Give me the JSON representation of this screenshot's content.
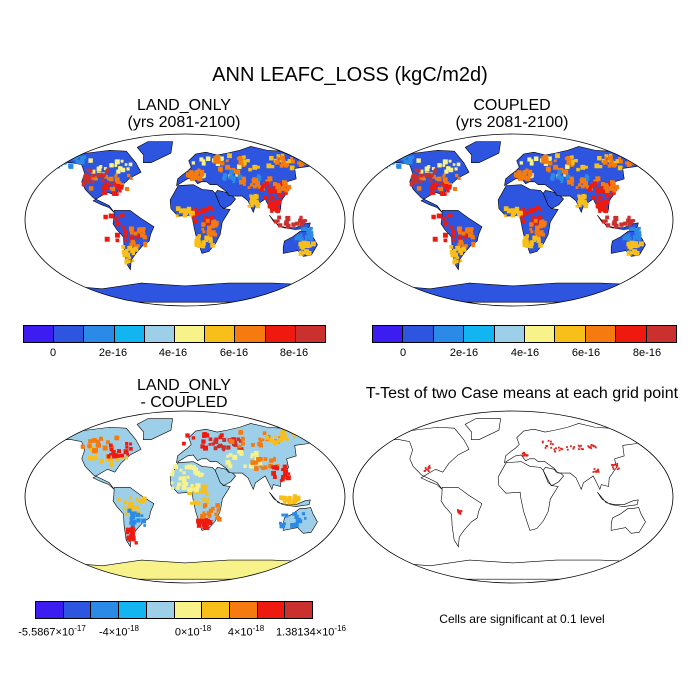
{
  "title": "ANN LEAFC_LOSS (kgC/m2d)",
  "panels": {
    "land_only": {
      "title_line1": "LAND_ONLY",
      "title_line2": "(yrs 2081-2100)"
    },
    "coupled": {
      "title_line1": "COUPLED",
      "title_line2": "(yrs 2081-2100)"
    },
    "diff": {
      "title_line1": "LAND_ONLY",
      "title_line2": "- COUPLED"
    },
    "ttest": {
      "title": "T-Test of two Case means at each grid point",
      "note": "Cells are significant at 0.1 level"
    }
  },
  "colorbar_main": {
    "colors": [
      "#3d1cf2",
      "#2e55e0",
      "#2a8ae6",
      "#12b5f0",
      "#9dd0e8",
      "#f8f28a",
      "#f8bf1a",
      "#f57a0f",
      "#ee1a10",
      "#c9302e"
    ],
    "ticks": [
      "0",
      "2e-16",
      "4e-16",
      "6e-16",
      "8e-16"
    ]
  },
  "colorbar_diff": {
    "colors": [
      "#3d1cf2",
      "#2e55e0",
      "#2a8ae6",
      "#12b5f0",
      "#9dd0e8",
      "#f8f28a",
      "#f8bf1a",
      "#f57a0f",
      "#ee1a10",
      "#c9302e"
    ],
    "ticks": [
      {
        "base": "-5.5867",
        "exp": "-17"
      },
      {
        "base": "-4",
        "exp": "-18"
      },
      {
        "base": "0",
        "exp": "-18"
      },
      {
        "base": "4",
        "exp": "-18"
      },
      {
        "base": "1.38134",
        "exp": "-16"
      }
    ],
    "times": "×10"
  },
  "colors": {
    "ocean": "#ffffff",
    "land_low": "#2e55e0",
    "land_mid": "#f8bf1a",
    "land_high": "#ee1a10",
    "diff_base": "#9dd0e8",
    "sig": "#e0201a"
  }
}
